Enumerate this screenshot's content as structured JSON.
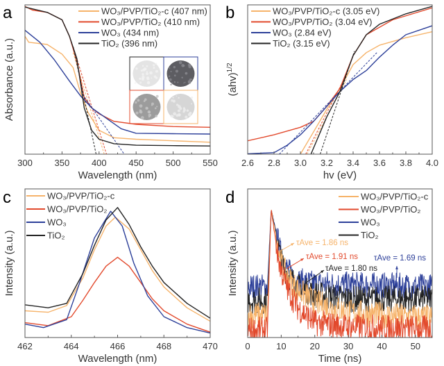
{
  "colors": {
    "orange": "#F6B36A",
    "red": "#E2492C",
    "blue": "#2C3F99",
    "black": "#222222"
  },
  "chart_data": [
    {
      "panel": "a",
      "type": "line",
      "xlabel": "Wavelength (nm)",
      "ylabel": "Absorbance (a.u.)",
      "xlim": [
        300,
        550
      ],
      "ylim": [
        0,
        1
      ],
      "xticks": [
        300,
        350,
        400,
        450,
        500,
        550
      ],
      "grid": false,
      "legend": "top-right",
      "inset": "photographs of the four powders (TiO2, WO3, WO3/PVP/TiO2, WO3/PVP/TiO2-c)",
      "series": [
        {
          "name": "WO₃/PVP/TiO₂-c (407 nm)",
          "color": "#F6B36A",
          "x": [
            300,
            305,
            330,
            350,
            365,
            375,
            385,
            400,
            420,
            450,
            500,
            550
          ],
          "y": [
            0.79,
            0.75,
            0.735,
            0.67,
            0.58,
            0.41,
            0.28,
            0.16,
            0.11,
            0.1,
            0.09,
            0.08
          ],
          "tangent": {
            "x": [
              365,
              407
            ],
            "y": [
              0.68,
              0
            ]
          }
        },
        {
          "name": "WO₃/PVP/TiO₂ (410 nm)",
          "color": "#E2492C",
          "x": [
            300,
            310,
            330,
            350,
            360,
            370,
            380,
            390,
            400,
            420,
            450,
            500,
            550
          ],
          "y": [
            0.99,
            0.965,
            0.95,
            0.9,
            0.79,
            0.62,
            0.38,
            0.31,
            0.27,
            0.22,
            0.2,
            0.185,
            0.18
          ],
          "tangent": {
            "x": [
              365,
              410
            ],
            "y": [
              0.72,
              0
            ]
          }
        },
        {
          "name": "WO₃ (434 nm)",
          "color": "#2C3F99",
          "x": [
            300,
            320,
            340,
            360,
            375,
            390,
            410,
            430,
            450,
            500,
            550
          ],
          "y": [
            0.83,
            0.75,
            0.63,
            0.49,
            0.39,
            0.31,
            0.24,
            0.17,
            0.14,
            0.137,
            0.135
          ],
          "tangent": {
            "x": [
              378,
              434
            ],
            "y": [
              0.4,
              0
            ]
          }
        },
        {
          "name": "TiO₂ (396 nm)",
          "color": "#222222",
          "x": [
            300,
            330,
            350,
            360,
            370,
            380,
            390,
            400,
            420,
            450,
            500,
            550
          ],
          "y": [
            0.985,
            0.95,
            0.9,
            0.79,
            0.64,
            0.31,
            0.16,
            0.1,
            0.07,
            0.06,
            0.057,
            0.055
          ],
          "tangent": {
            "x": [
              365,
              396
            ],
            "y": [
              0.72,
              0
            ]
          }
        }
      ]
    },
    {
      "panel": "b",
      "type": "line",
      "xlabel": "hv (eV)",
      "ylabel": "(ahv)",
      "ylabel_sup": "1/2",
      "xlim": [
        2.6,
        4.0
      ],
      "ylim": [
        0,
        1
      ],
      "xticks": [
        2.6,
        2.8,
        3.0,
        3.2,
        3.4,
        3.6,
        3.8,
        4.0
      ],
      "grid": false,
      "legend": "top-left",
      "series": [
        {
          "name": "WO₃/PVP/TiO₂-c (3.05 eV)",
          "color": "#F6B36A",
          "x": [
            3.0,
            3.1,
            3.2,
            3.3,
            3.4,
            3.5,
            3.6,
            3.8,
            4.0
          ],
          "y": [
            0,
            0.15,
            0.3,
            0.44,
            0.6,
            0.68,
            0.73,
            0.78,
            0.82
          ],
          "tangent": {
            "x": [
              3.05,
              3.35
            ],
            "y": [
              0,
              0.5
            ]
          }
        },
        {
          "name": "WO₃/PVP/TiO₂ (3.04 eV)",
          "color": "#E2492C",
          "x": [
            2.6,
            2.8,
            3.0,
            3.1,
            3.2,
            3.3,
            3.4,
            3.5,
            3.7,
            4.0
          ],
          "y": [
            0.09,
            0.13,
            0.18,
            0.22,
            0.32,
            0.44,
            0.66,
            0.8,
            0.9,
            0.98
          ],
          "tangent": {
            "x": [
              3.04,
              3.33
            ],
            "y": [
              0,
              0.5
            ]
          }
        },
        {
          "name": "WO₃ (2.84 eV)",
          "color": "#2C3F99",
          "x": [
            2.6,
            2.8,
            2.9,
            3.0,
            3.1,
            3.2,
            3.3,
            3.4,
            3.5,
            3.6,
            3.7,
            3.8,
            4.0
          ],
          "y": [
            0.003,
            0.01,
            0.06,
            0.13,
            0.22,
            0.32,
            0.42,
            0.5,
            0.56,
            0.65,
            0.73,
            0.8,
            0.86
          ],
          "tangent": {
            "x": [
              2.84,
              3.58
            ],
            "y": [
              0,
              0.68
            ]
          }
        },
        {
          "name": "TiO₂ (3.15 eV)",
          "color": "#222222",
          "x": [
            3.08,
            3.2,
            3.3,
            3.4,
            3.5,
            3.6,
            3.8,
            4.0
          ],
          "y": [
            0,
            0.25,
            0.42,
            0.66,
            0.8,
            0.87,
            0.94,
            0.99
          ],
          "tangent": {
            "x": [
              3.15,
              3.41
            ],
            "y": [
              0,
              0.69
            ]
          }
        }
      ]
    },
    {
      "panel": "c",
      "type": "line",
      "xlabel": "Wavelength (nm)",
      "ylabel": "Intensity (a.u.)",
      "xlim": [
        462,
        470
      ],
      "ylim": [
        0,
        1
      ],
      "xticks": [
        462,
        464,
        466,
        468,
        470
      ],
      "grid": false,
      "legend": "top-left",
      "series": [
        {
          "name": "WO₃/PVP/TiO₂-c",
          "color": "#F6B36A",
          "x": [
            462,
            463,
            463.8,
            464.5,
            465,
            465.5,
            465.9,
            466.5,
            467,
            467.5,
            468,
            469,
            470
          ],
          "y": [
            0.18,
            0.17,
            0.215,
            0.4,
            0.59,
            0.75,
            0.81,
            0.73,
            0.59,
            0.45,
            0.34,
            0.2,
            0.11
          ]
        },
        {
          "name": "WO₃/PVP/TiO₂",
          "color": "#E2492C",
          "x": [
            462,
            463,
            464,
            464.5,
            465,
            465.5,
            466,
            466.5,
            467,
            467.5,
            468,
            469,
            470
          ],
          "y": [
            0.1,
            0.08,
            0.14,
            0.25,
            0.37,
            0.48,
            0.54,
            0.48,
            0.37,
            0.26,
            0.18,
            0.09,
            0.036
          ]
        },
        {
          "name": "WO₃",
          "color": "#2C3F99",
          "x": [
            462,
            462.8,
            463.8,
            464.3,
            465,
            465.7,
            466.2,
            466.7,
            467.3,
            468,
            469,
            470
          ],
          "y": [
            0.09,
            0.067,
            0.12,
            0.34,
            0.67,
            0.85,
            0.75,
            0.5,
            0.28,
            0.14,
            0.067,
            0.03
          ]
        },
        {
          "name": "TiO₂",
          "color": "#222222",
          "x": [
            462,
            463,
            463.8,
            464.5,
            465,
            465.5,
            466,
            466.5,
            467,
            467.5,
            468,
            469,
            470
          ],
          "y": [
            0.22,
            0.2,
            0.23,
            0.43,
            0.62,
            0.79,
            0.875,
            0.76,
            0.61,
            0.48,
            0.37,
            0.23,
            0.13
          ]
        }
      ]
    },
    {
      "panel": "d",
      "type": "line",
      "xlabel": "Time (ns)",
      "ylabel": "Intensity (a.u.)",
      "xlim": [
        0,
        55
      ],
      "ylim": [
        0,
        1
      ],
      "xticks": [
        0,
        10,
        20,
        30,
        40,
        50
      ],
      "grid": false,
      "legend": "top-right",
      "series": [
        {
          "name": "WO₃/PVP/TiO₂-c",
          "color": "#F6B36A",
          "x": [
            0,
            5.9,
            7,
            10,
            12,
            15,
            20,
            25,
            30,
            40,
            55
          ],
          "y": [
            0.15,
            0.15,
            0.86,
            0.5,
            0.4,
            0.32,
            0.24,
            0.2,
            0.17,
            0.15,
            0.13
          ],
          "annotation": "τAve = 1.86 ns"
        },
        {
          "name": "WO₃/PVP/TiO₂",
          "color": "#E2492C",
          "x": [
            0,
            5.9,
            7,
            9,
            10,
            12,
            15,
            20,
            30,
            55
          ],
          "y": [
            0.05,
            0.05,
            0.86,
            0.55,
            0.45,
            0.32,
            0.2,
            0.1,
            0.07,
            0.06
          ],
          "annotation": "τAve = 1.91 ns"
        },
        {
          "name": "WO₃",
          "color": "#2C3F99",
          "x": [
            0,
            5.9,
            7,
            10,
            12,
            15,
            20,
            55
          ],
          "y": [
            0.34,
            0.34,
            0.86,
            0.55,
            0.45,
            0.38,
            0.36,
            0.34
          ],
          "annotation": "τAve = 1.69 ns"
        },
        {
          "name": "TiO₂",
          "color": "#222222",
          "x": [
            0,
            5.9,
            7,
            10,
            12,
            15,
            20,
            30,
            55
          ],
          "y": [
            0.25,
            0.25,
            0.86,
            0.52,
            0.42,
            0.34,
            0.29,
            0.26,
            0.26
          ],
          "annotation": "τAve = 1.80 ns"
        }
      ]
    }
  ]
}
